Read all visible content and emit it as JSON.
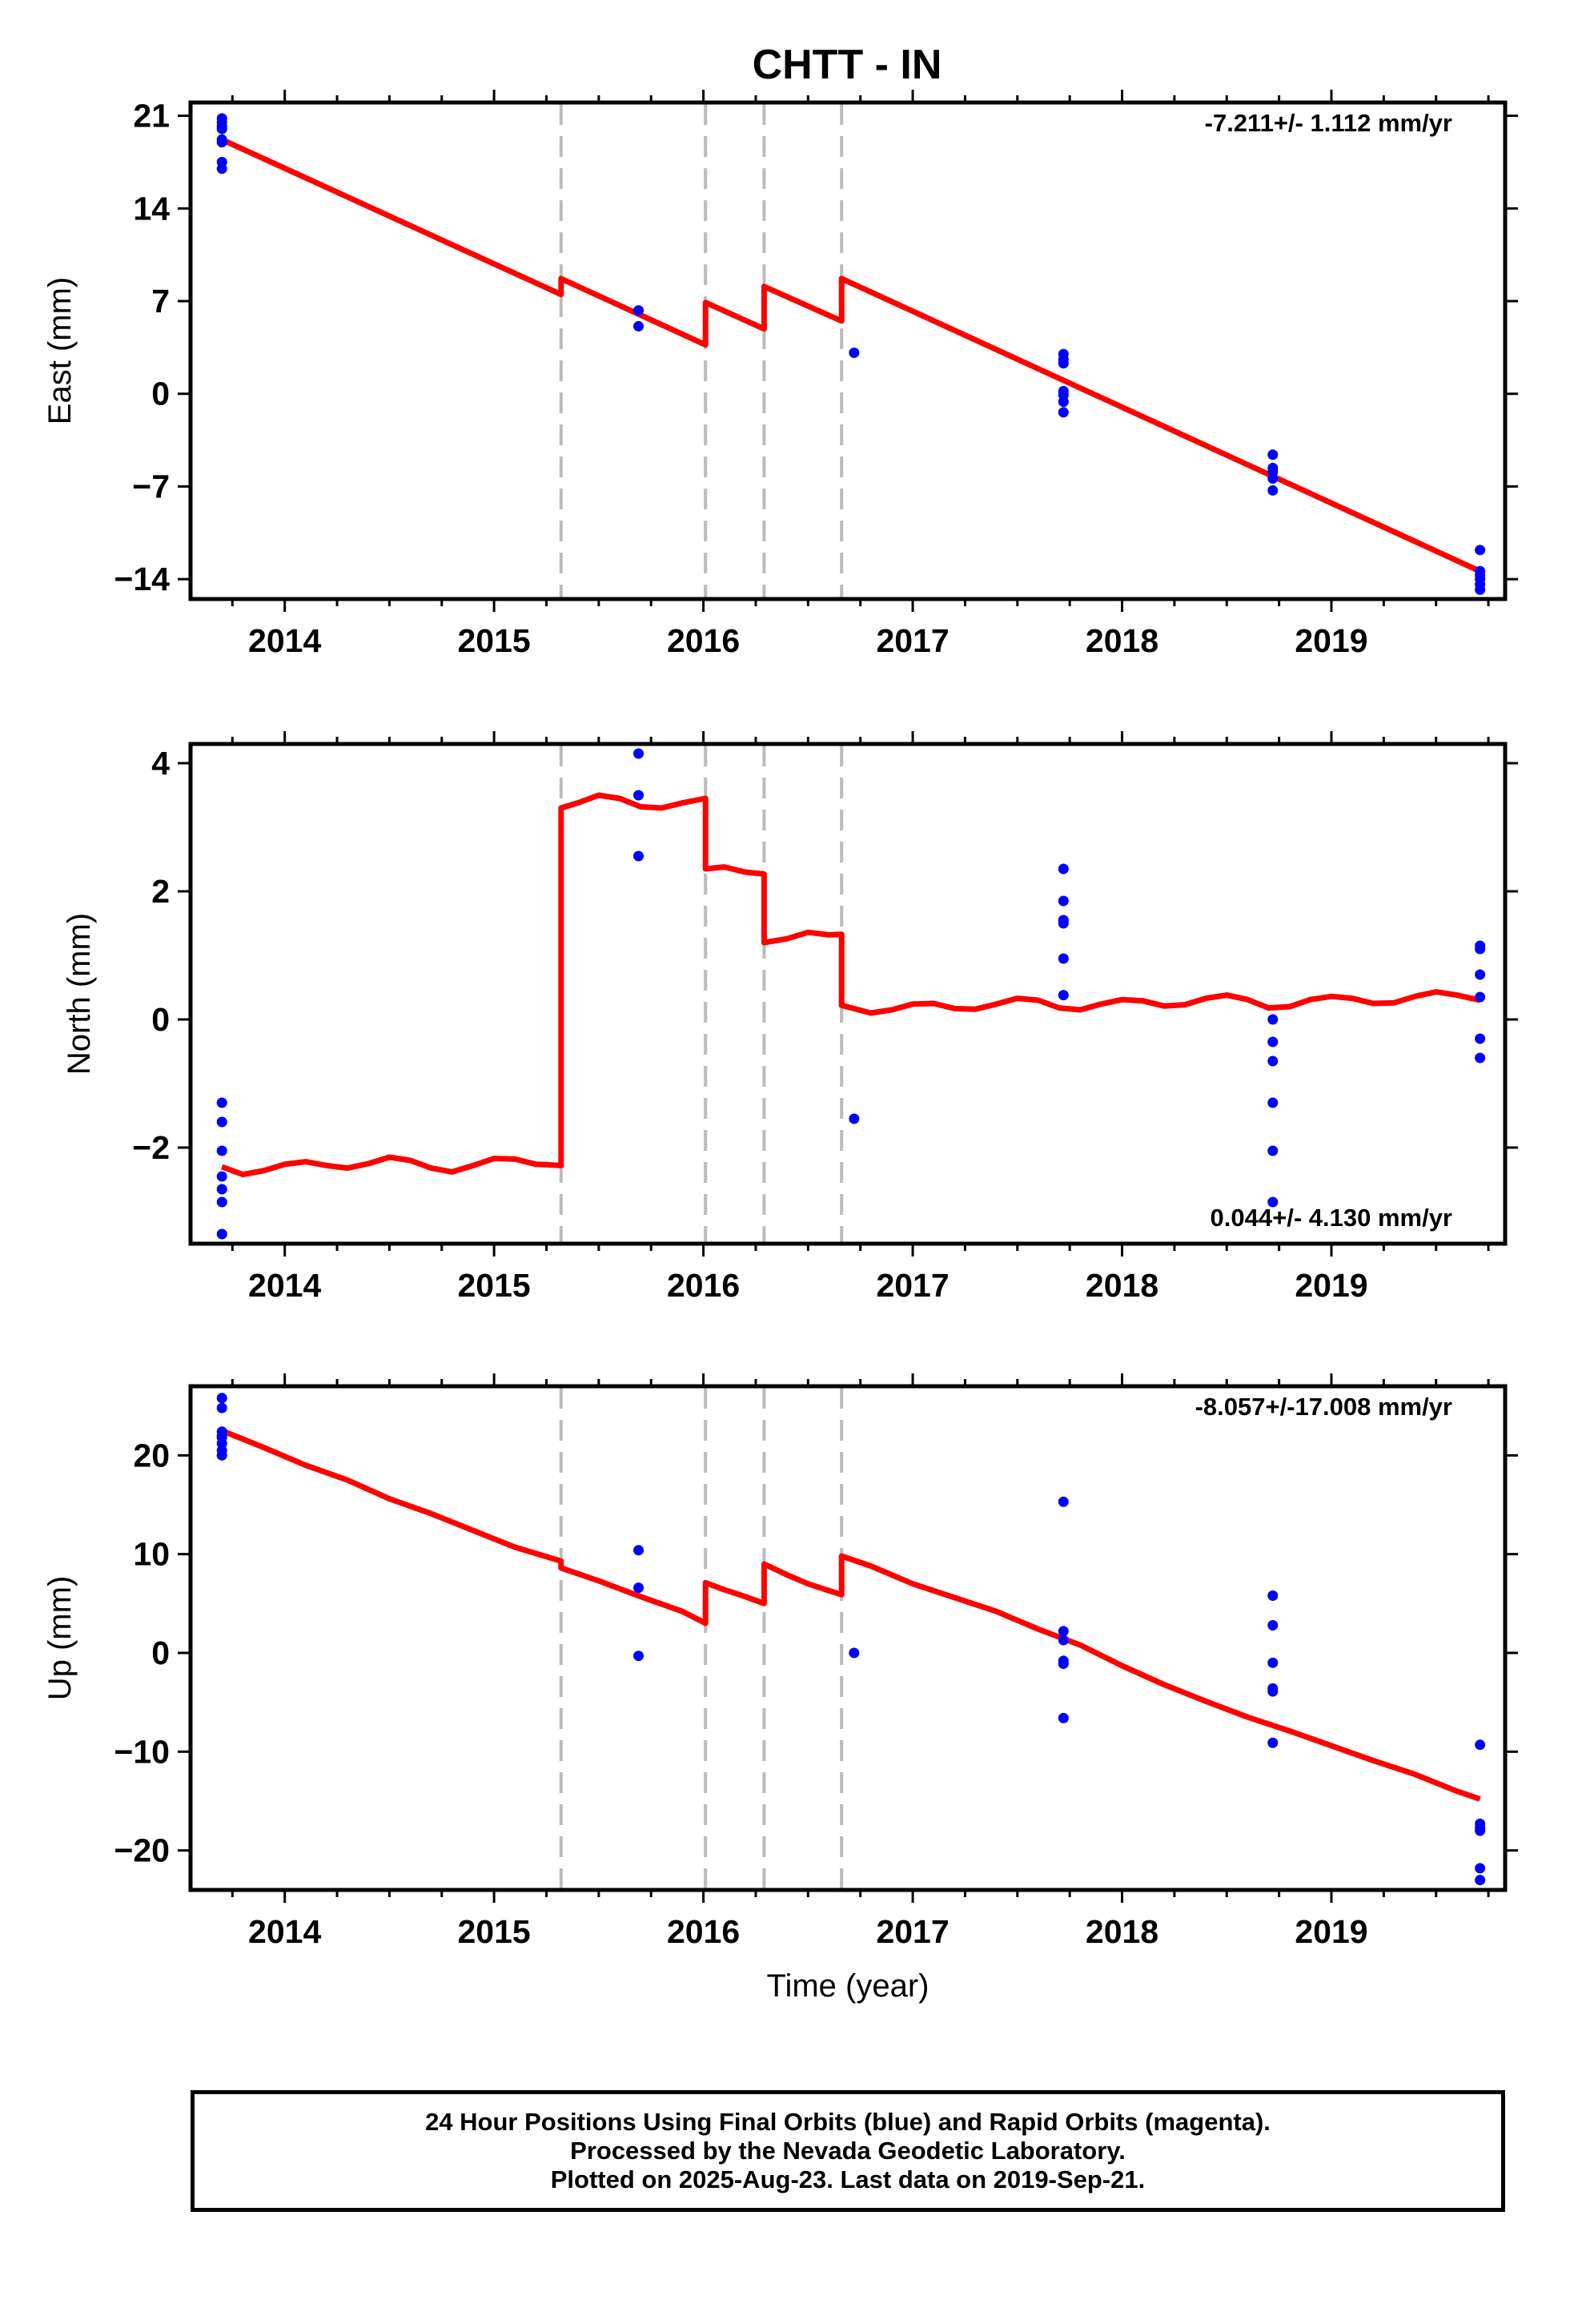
{
  "title": "CHTT - IN",
  "footer": {
    "line1": "24 Hour Positions Using Final Orbits (blue) and Rapid Orbits (magenta).",
    "line2": "Processed by the Nevada Geodetic Laboratory.",
    "line3": "Plotted on 2025-Aug-23. Last data on 2019-Sep-21."
  },
  "colors": {
    "fit": "#ff0000",
    "points": "#0000ff",
    "breaks": "#bbbbbb",
    "frame": "#000000"
  },
  "chart_data": [
    {
      "type": "scatter",
      "ylabel": "East (mm)",
      "xlabel": "",
      "xlim": [
        2013.55,
        2019.83
      ],
      "ylim": [
        -15.5,
        22.0
      ],
      "yticks": [
        21,
        14,
        7,
        0,
        -7,
        -14
      ],
      "xticks": [
        2014,
        2015,
        2016,
        2017,
        2018,
        2019
      ],
      "rate_text": "-7.211+/- 1.112 mm/yr",
      "rate_position": "top-right",
      "break_epochs": [
        2015.32,
        2016.01,
        2016.29,
        2016.66
      ],
      "series": [
        {
          "kind": "points",
          "x": [
            2013.7,
            2013.7,
            2013.7,
            2013.7,
            2013.7,
            2013.7,
            2013.7,
            2013.7,
            2015.69,
            2015.69,
            2016.72,
            2017.72,
            2017.72,
            2017.72,
            2017.72,
            2017.72,
            2017.72,
            2017.72,
            2018.72,
            2018.72,
            2018.72,
            2018.72,
            2018.72,
            2019.71,
            2019.71,
            2019.71,
            2019.71,
            2019.71,
            2019.71
          ],
          "y": [
            20.8,
            20.5,
            20.0,
            19.2,
            19.0,
            17.5,
            17.0,
            20.2,
            6.3,
            5.1,
            3.1,
            3.0,
            2.6,
            2.3,
            0.2,
            -0.1,
            -0.6,
            -1.4,
            -4.6,
            -5.6,
            -5.9,
            -6.4,
            -7.3,
            -11.8,
            -13.4,
            -13.7,
            -14.0,
            -14.4,
            -14.8
          ]
        },
        {
          "kind": "fit",
          "segments": [
            {
              "x": [
                2013.7,
                2015.32
              ],
              "y": [
                19.2,
                7.5
              ]
            },
            {
              "x": [
                2015.32,
                2016.01
              ],
              "y": [
                8.7,
                3.7
              ]
            },
            {
              "x": [
                2016.01,
                2016.29
              ],
              "y": [
                6.9,
                4.9
              ]
            },
            {
              "x": [
                2016.29,
                2016.66
              ],
              "y": [
                8.1,
                5.5
              ]
            },
            {
              "x": [
                2016.66,
                2019.71
              ],
              "y": [
                8.7,
                -13.4
              ]
            }
          ]
        }
      ]
    },
    {
      "type": "scatter",
      "ylabel": "North (mm)",
      "xlabel": "",
      "xlim": [
        2013.55,
        2019.83
      ],
      "ylim": [
        -3.5,
        4.3
      ],
      "yticks": [
        4,
        2,
        0,
        -2
      ],
      "xticks": [
        2014,
        2015,
        2016,
        2017,
        2018,
        2019
      ],
      "rate_text": "0.044+/- 4.130 mm/yr",
      "rate_position": "bottom-right",
      "break_epochs": [
        2015.32,
        2016.01,
        2016.29,
        2016.66
      ],
      "series": [
        {
          "kind": "points",
          "x": [
            2013.7,
            2013.7,
            2013.7,
            2013.7,
            2013.7,
            2013.7,
            2013.7,
            2015.69,
            2015.69,
            2015.69,
            2016.72,
            2017.72,
            2017.72,
            2017.72,
            2017.72,
            2017.72,
            2017.72,
            2017.72,
            2018.72,
            2018.72,
            2018.72,
            2018.72,
            2018.72,
            2018.72,
            2019.71,
            2019.71,
            2019.71,
            2019.71,
            2019.71,
            2019.71
          ],
          "y": [
            -1.3,
            -1.6,
            -2.05,
            -2.45,
            -2.65,
            -2.85,
            -3.35,
            4.15,
            3.5,
            2.55,
            -1.55,
            2.35,
            1.85,
            1.55,
            1.5,
            0.95,
            0.38,
            1.55,
            0.0,
            -0.35,
            -0.65,
            -1.3,
            -2.05,
            -2.85,
            1.15,
            1.1,
            0.7,
            0.35,
            -0.3,
            -0.6
          ]
        },
        {
          "kind": "fit",
          "segments": [
            {
              "x": [
                2013.7,
                2013.8,
                2013.9,
                2014.0,
                2014.1,
                2014.2,
                2014.3,
                2014.4,
                2014.5,
                2014.6,
                2014.7,
                2014.8,
                2014.9,
                2015.0,
                2015.1,
                2015.2,
                2015.32
              ],
              "y": [
                -2.3,
                -2.42,
                -2.36,
                -2.26,
                -2.22,
                -2.28,
                -2.32,
                -2.25,
                -2.15,
                -2.2,
                -2.32,
                -2.38,
                -2.28,
                -2.17,
                -2.18,
                -2.26,
                -2.28
              ]
            },
            {
              "x": [
                2015.32,
                2015.4,
                2015.5,
                2015.6,
                2015.7,
                2015.8,
                2015.9,
                2016.01
              ],
              "y": [
                3.3,
                3.38,
                3.5,
                3.45,
                3.32,
                3.3,
                3.38,
                3.45
              ]
            },
            {
              "x": [
                2016.01,
                2016.1,
                2016.2,
                2016.29
              ],
              "y": [
                2.35,
                2.38,
                2.3,
                2.27
              ]
            },
            {
              "x": [
                2016.29,
                2016.4,
                2016.5,
                2016.6,
                2016.66
              ],
              "y": [
                1.2,
                1.26,
                1.36,
                1.32,
                1.33
              ]
            },
            {
              "x": [
                2016.66,
                2016.8,
                2016.9,
                2017.0,
                2017.1,
                2017.2,
                2017.3,
                2017.4,
                2017.5,
                2017.6,
                2017.7,
                2017.8,
                2017.9,
                2018.0,
                2018.1,
                2018.2,
                2018.3,
                2018.4,
                2018.5,
                2018.6,
                2018.7,
                2018.8,
                2018.9,
                2019.0,
                2019.1,
                2019.2,
                2019.3,
                2019.4,
                2019.5,
                2019.6,
                2019.71
              ],
              "y": [
                0.22,
                0.1,
                0.15,
                0.24,
                0.25,
                0.17,
                0.16,
                0.24,
                0.33,
                0.3,
                0.18,
                0.15,
                0.24,
                0.31,
                0.29,
                0.21,
                0.23,
                0.33,
                0.38,
                0.31,
                0.18,
                0.2,
                0.31,
                0.36,
                0.33,
                0.25,
                0.26,
                0.36,
                0.43,
                0.38,
                0.3
              ]
            }
          ]
        }
      ]
    },
    {
      "type": "scatter",
      "ylabel": "Up (mm)",
      "xlabel": "Time (year)",
      "xlim": [
        2013.55,
        2019.83
      ],
      "ylim": [
        -24.0,
        27.0
      ],
      "yticks": [
        20,
        10,
        0,
        -10,
        -20
      ],
      "xticks": [
        2014,
        2015,
        2016,
        2017,
        2018,
        2019
      ],
      "rate_text": "-8.057+/-17.008 mm/yr",
      "rate_position": "top-right",
      "break_epochs": [
        2015.32,
        2016.01,
        2016.29,
        2016.66
      ],
      "series": [
        {
          "kind": "points",
          "x": [
            2013.7,
            2013.7,
            2013.7,
            2013.7,
            2013.7,
            2013.7,
            2013.7,
            2013.7,
            2015.69,
            2015.69,
            2015.69,
            2016.72,
            2017.72,
            2017.72,
            2017.72,
            2017.72,
            2017.72,
            2017.72,
            2018.72,
            2018.72,
            2018.72,
            2018.72,
            2018.72,
            2018.72,
            2019.71,
            2019.71,
            2019.71,
            2019.71,
            2019.71,
            2019.71
          ],
          "y": [
            25.8,
            24.8,
            22.4,
            21.8,
            21.2,
            20.5,
            20.0,
            22.0,
            10.4,
            6.6,
            -0.3,
            0.0,
            15.3,
            2.2,
            1.3,
            -0.8,
            -1.1,
            -6.6,
            5.8,
            2.8,
            -1.0,
            -3.6,
            -3.9,
            -9.1,
            -9.3,
            -17.3,
            -17.7,
            -18.0,
            -21.8,
            -23.0
          ]
        },
        {
          "kind": "fit",
          "segments": [
            {
              "x": [
                2013.7,
                2013.9,
                2014.1,
                2014.3,
                2014.5,
                2014.7,
                2014.9,
                2015.1,
                2015.32
              ],
              "y": [
                22.5,
                20.8,
                19.0,
                17.5,
                15.6,
                14.1,
                12.4,
                10.7,
                9.3
              ]
            },
            {
              "x": [
                2015.32,
                2015.5,
                2015.7,
                2015.9,
                2016.01
              ],
              "y": [
                8.6,
                7.3,
                5.7,
                4.2,
                3.0
              ]
            },
            {
              "x": [
                2016.01,
                2016.1,
                2016.2,
                2016.29
              ],
              "y": [
                7.1,
                6.4,
                5.7,
                5.0
              ]
            },
            {
              "x": [
                2016.29,
                2016.4,
                2016.5,
                2016.6,
                2016.66
              ],
              "y": [
                9.0,
                7.9,
                7.0,
                6.3,
                5.9
              ]
            },
            {
              "x": [
                2016.66,
                2016.8,
                2017.0,
                2017.2,
                2017.4,
                2017.6,
                2017.8,
                2018.0,
                2018.2,
                2018.4,
                2018.6,
                2018.8,
                2019.0,
                2019.2,
                2019.4,
                2019.6,
                2019.71
              ],
              "y": [
                9.8,
                8.8,
                7.0,
                5.6,
                4.2,
                2.4,
                0.8,
                -1.3,
                -3.2,
                -4.9,
                -6.5,
                -7.9,
                -9.4,
                -10.9,
                -12.3,
                -14.0,
                -14.8
              ]
            }
          ]
        }
      ]
    }
  ]
}
